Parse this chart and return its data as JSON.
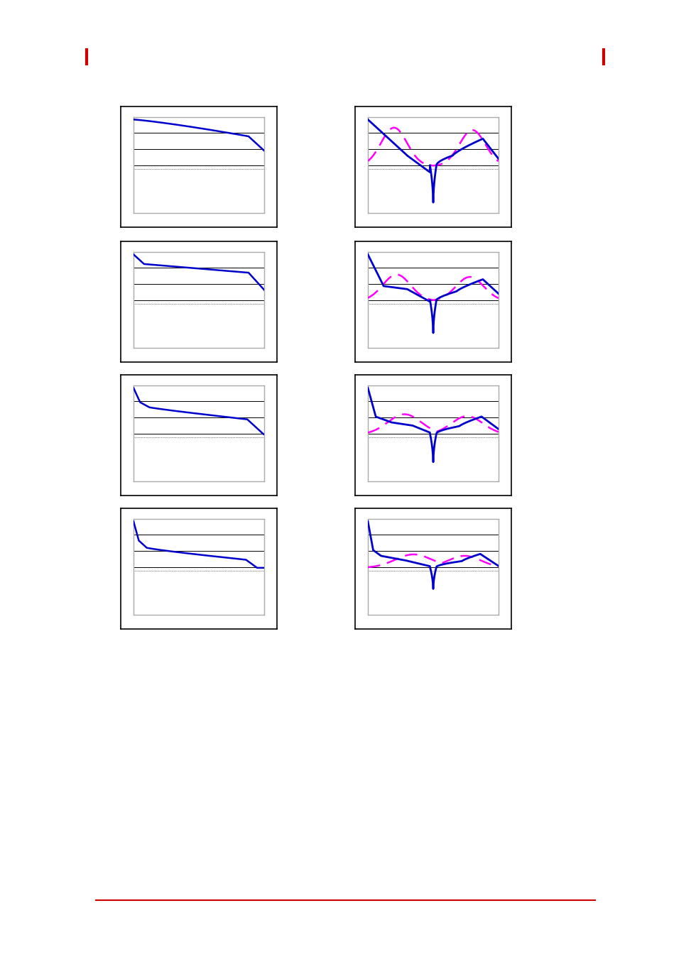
{
  "figure_bg": "#ffffff",
  "plot_bg": "#ffffff",
  "inner_bg": "#f0f0f0",
  "page_width": 9.54,
  "page_height": 13.52,
  "dpi": 100,
  "blue_color": "#0000cc",
  "magenta_color": "#ff00ff",
  "border_color": "#000000",
  "inner_border_color": "#999999",
  "red_bar_color": "#cc0000",
  "red_line_color": "#cc0000"
}
